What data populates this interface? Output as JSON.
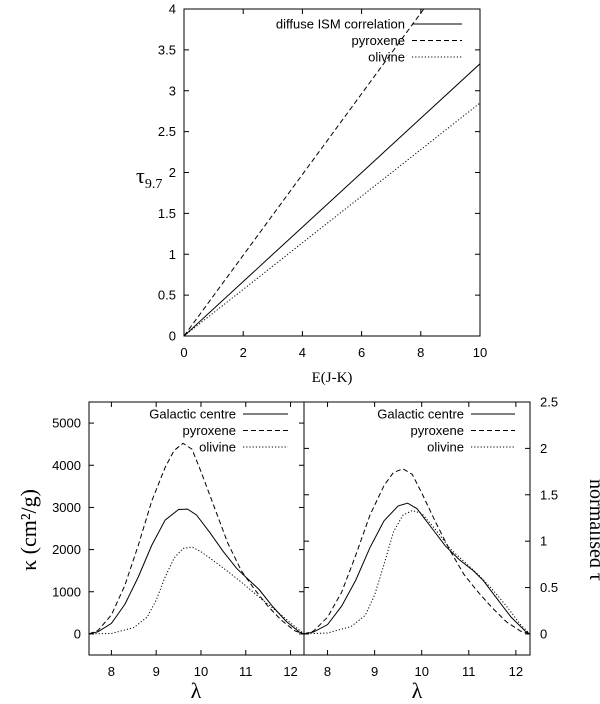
{
  "chart_data": [
    {
      "id": "top",
      "type": "line",
      "xlabel": "E(J-K)",
      "ylabel_main": "τ",
      "ylabel_sub": "9.7",
      "xlim": [
        0,
        10
      ],
      "ylim": [
        0,
        4
      ],
      "xticks": [
        0,
        2,
        4,
        6,
        8,
        10
      ],
      "yticks": [
        0,
        0.5,
        1,
        1.5,
        2,
        2.5,
        3,
        3.5,
        4
      ],
      "xticks_labels": [
        "0",
        "2",
        "4",
        "6",
        "8",
        "10"
      ],
      "yticks_labels": [
        "0",
        "0.5",
        "1",
        "1.5",
        "2",
        "2.5",
        "3",
        "3.5",
        "4"
      ],
      "legend": [
        "diffuse ISM correlation",
        "pyroxene",
        "olivine"
      ],
      "series": [
        {
          "name": "diffuse ISM correlation",
          "style": "solid",
          "x": [
            0,
            10
          ],
          "y": [
            0,
            3.33
          ]
        },
        {
          "name": "pyroxene",
          "style": "dashed",
          "x": [
            0,
            8.1
          ],
          "y": [
            0,
            4.0
          ]
        },
        {
          "name": "olivine",
          "style": "dotted",
          "x": [
            0,
            10
          ],
          "y": [
            0,
            2.85
          ]
        }
      ]
    },
    {
      "id": "bottom-left",
      "type": "line",
      "xlabel": "λ",
      "ylabel": "κ (cm²/g)",
      "xlim": [
        7.5,
        12.3
      ],
      "ylim": [
        -500,
        5500
      ],
      "xticks": [
        8,
        9,
        10,
        11,
        12
      ],
      "yticks": [
        0,
        1000,
        2000,
        3000,
        4000,
        5000
      ],
      "xticks_labels": [
        "8",
        "9",
        "10",
        "11",
        "12"
      ],
      "yticks_labels": [
        "0",
        "1000",
        "2000",
        "3000",
        "4000",
        "5000"
      ],
      "legend": [
        "Galactic centre",
        "pyroxene",
        "olivine"
      ],
      "series": [
        {
          "name": "Galactic centre",
          "style": "solid",
          "x": [
            7.5,
            7.7,
            8.0,
            8.3,
            8.6,
            8.9,
            9.2,
            9.5,
            9.7,
            9.9,
            10.2,
            10.5,
            10.8,
            11.1,
            11.3,
            11.6,
            11.9,
            12.2,
            12.3
          ],
          "y": [
            0,
            50,
            250,
            700,
            1350,
            2100,
            2700,
            2950,
            2960,
            2820,
            2400,
            1950,
            1550,
            1250,
            1050,
            650,
            300,
            40,
            0
          ]
        },
        {
          "name": "pyroxene",
          "style": "dashed",
          "x": [
            7.5,
            7.7,
            8.0,
            8.3,
            8.6,
            8.9,
            9.2,
            9.4,
            9.6,
            9.8,
            10.0,
            10.3,
            10.6,
            10.9,
            11.2,
            11.5,
            11.8,
            12.1,
            12.3
          ],
          "y": [
            0,
            80,
            450,
            1150,
            2100,
            3150,
            3950,
            4350,
            4520,
            4380,
            3850,
            3000,
            2150,
            1500,
            1050,
            650,
            320,
            70,
            0
          ]
        },
        {
          "name": "olivine",
          "style": "dotted",
          "x": [
            7.5,
            8.0,
            8.5,
            8.8,
            9.0,
            9.2,
            9.4,
            9.6,
            9.8,
            10.0,
            10.3,
            10.6,
            10.9,
            11.2,
            11.5,
            11.8,
            12.1,
            12.3
          ],
          "y": [
            0,
            10,
            150,
            400,
            800,
            1350,
            1800,
            2030,
            2060,
            1950,
            1720,
            1480,
            1230,
            960,
            700,
            440,
            170,
            0
          ]
        }
      ]
    },
    {
      "id": "bottom-right",
      "type": "line",
      "xlabel": "λ",
      "ylabel": "normalised τ",
      "xlim": [
        7.5,
        12.3
      ],
      "ylim": [
        -0.227,
        2.5
      ],
      "xticks": [
        8,
        9,
        10,
        11,
        12
      ],
      "yticks": [
        0,
        0.5,
        1,
        1.5,
        2,
        2.5
      ],
      "xticks_labels": [
        "8",
        "9",
        "10",
        "11",
        "12"
      ],
      "yticks_labels": [
        "0",
        "0.5",
        "1",
        "1.5",
        "2",
        "2.5"
      ],
      "legend": [
        "Galactic centre",
        "pyroxene",
        "olivine"
      ],
      "series": [
        {
          "name": "Galactic centre",
          "style": "solid",
          "x": [
            7.5,
            7.7,
            8.0,
            8.3,
            8.6,
            8.9,
            9.2,
            9.5,
            9.7,
            9.9,
            10.2,
            10.5,
            10.8,
            11.1,
            11.3,
            11.6,
            11.9,
            12.2,
            12.3
          ],
          "y": [
            0,
            0.02,
            0.1,
            0.3,
            0.58,
            0.93,
            1.22,
            1.38,
            1.41,
            1.35,
            1.15,
            0.95,
            0.8,
            0.68,
            0.58,
            0.38,
            0.18,
            0.03,
            0
          ]
        },
        {
          "name": "pyroxene",
          "style": "dashed",
          "x": [
            7.5,
            7.7,
            8.0,
            8.3,
            8.6,
            8.9,
            9.2,
            9.4,
            9.6,
            9.8,
            10.0,
            10.3,
            10.6,
            10.9,
            11.2,
            11.5,
            11.8,
            12.1,
            12.3
          ],
          "y": [
            0,
            0.03,
            0.18,
            0.45,
            0.85,
            1.28,
            1.6,
            1.74,
            1.78,
            1.72,
            1.52,
            1.2,
            0.9,
            0.64,
            0.45,
            0.28,
            0.13,
            0.03,
            0
          ]
        },
        {
          "name": "olivine",
          "style": "dotted",
          "x": [
            7.5,
            8.0,
            8.5,
            8.8,
            9.0,
            9.2,
            9.4,
            9.6,
            9.8,
            10.0,
            10.3,
            10.6,
            10.9,
            11.2,
            11.5,
            11.8,
            12.1,
            12.3
          ],
          "y": [
            0,
            0.01,
            0.08,
            0.2,
            0.42,
            0.75,
            1.1,
            1.28,
            1.33,
            1.3,
            1.12,
            0.92,
            0.78,
            0.64,
            0.48,
            0.3,
            0.1,
            0
          ]
        }
      ]
    }
  ]
}
